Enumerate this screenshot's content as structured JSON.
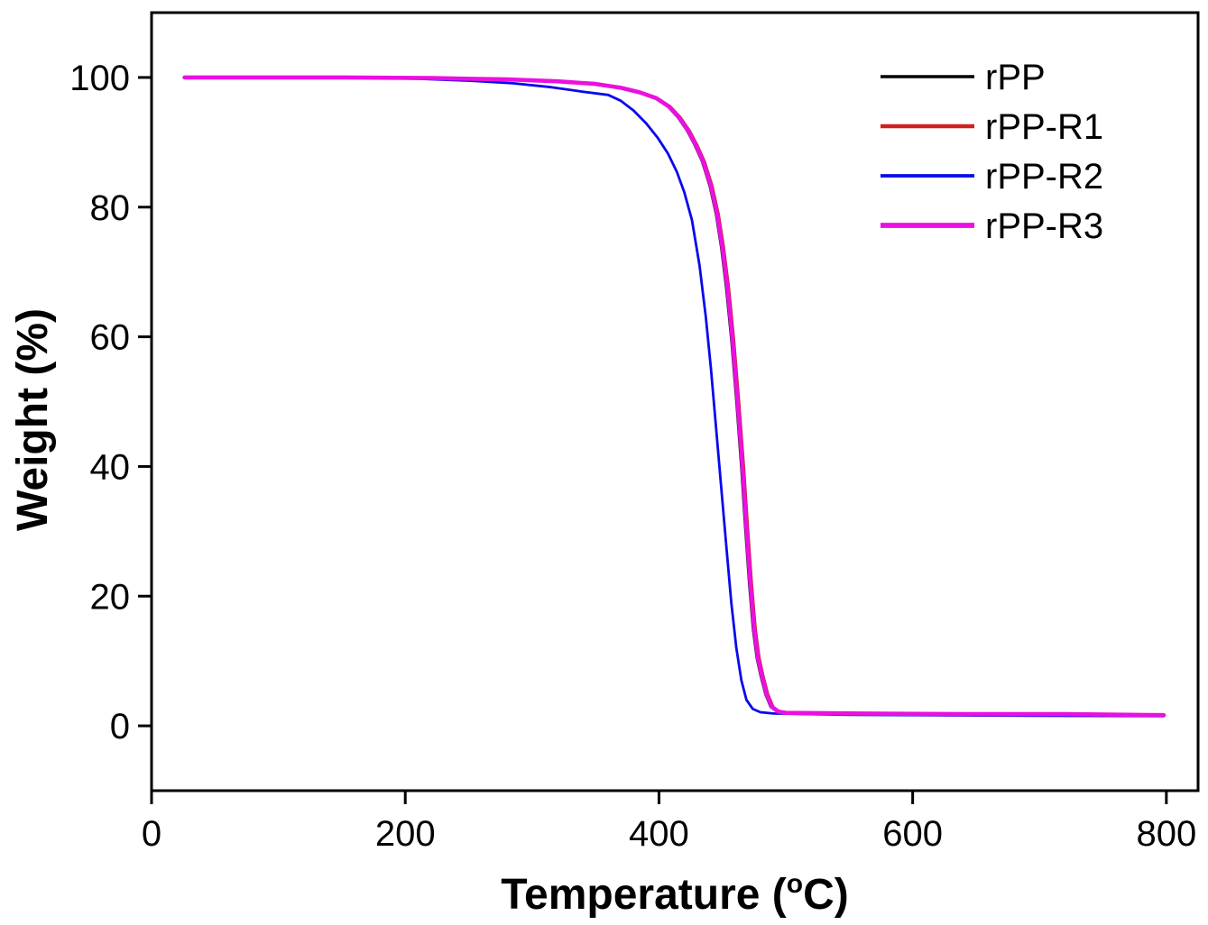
{
  "figure": {
    "background": "#ffffff",
    "frame_color": "#000000"
  },
  "chart_data": {
    "type": "line",
    "title": "",
    "xlabel": "Temperature (°C)",
    "xlabel_parts": {
      "prefix": "Temperature (",
      "sup": "o",
      "suffix": "C)"
    },
    "ylabel": "Weight (%)",
    "xlim": [
      0,
      825
    ],
    "ylim": [
      -10,
      110
    ],
    "x_ticks": [
      0,
      200,
      400,
      600,
      800
    ],
    "y_ticks": [
      0,
      20,
      40,
      60,
      80,
      100
    ],
    "grid": false,
    "legend_position": "top-right",
    "series": [
      {
        "name": "rPP",
        "color": "#000000",
        "width": 2.6,
        "legend_width": 3.6,
        "points": [
          [
            26,
            100
          ],
          [
            150,
            100
          ],
          [
            220,
            99.9
          ],
          [
            280,
            99.7
          ],
          [
            320,
            99.4
          ],
          [
            350,
            99.0
          ],
          [
            370,
            98.4
          ],
          [
            385,
            97.7
          ],
          [
            398,
            96.8
          ],
          [
            407,
            95.5
          ],
          [
            415,
            93.8
          ],
          [
            422,
            91.8
          ],
          [
            428,
            89.6
          ],
          [
            434,
            87.0
          ],
          [
            440,
            83.2
          ],
          [
            445,
            78.8
          ],
          [
            449,
            73.8
          ],
          [
            453,
            67.5
          ],
          [
            457,
            59.5
          ],
          [
            461,
            50.0
          ],
          [
            465,
            39.5
          ],
          [
            468,
            30.5
          ],
          [
            471,
            22.0
          ],
          [
            474,
            15.0
          ],
          [
            477,
            10.5
          ],
          [
            480,
            7.8
          ],
          [
            484,
            4.8
          ],
          [
            488,
            2.9
          ],
          [
            493,
            2.2
          ],
          [
            499,
            2.0
          ],
          [
            560,
            1.9
          ],
          [
            640,
            1.85
          ],
          [
            720,
            1.8
          ],
          [
            798,
            1.75
          ]
        ]
      },
      {
        "name": "rPP-R1",
        "color": "#d02020",
        "width": 3.2,
        "legend_width": 4.4,
        "points": [
          [
            26,
            100
          ],
          [
            150,
            100
          ],
          [
            220,
            99.9
          ],
          [
            280,
            99.7
          ],
          [
            320,
            99.4
          ],
          [
            350,
            99.0
          ],
          [
            370,
            98.4
          ],
          [
            385,
            97.7
          ],
          [
            398,
            96.8
          ],
          [
            409,
            95.5
          ],
          [
            417,
            93.8
          ],
          [
            424,
            91.8
          ],
          [
            430,
            89.6
          ],
          [
            436,
            87.0
          ],
          [
            442,
            83.2
          ],
          [
            447,
            78.8
          ],
          [
            451,
            73.8
          ],
          [
            455,
            67.5
          ],
          [
            459,
            59.5
          ],
          [
            463,
            50.0
          ],
          [
            467,
            39.5
          ],
          [
            470,
            30.5
          ],
          [
            473,
            22.0
          ],
          [
            476,
            15.0
          ],
          [
            479,
            10.5
          ],
          [
            482,
            7.8
          ],
          [
            486,
            4.8
          ],
          [
            490,
            2.9
          ],
          [
            495,
            2.2
          ],
          [
            501,
            2.0
          ],
          [
            560,
            1.9
          ],
          [
            640,
            1.8
          ],
          [
            720,
            1.75
          ],
          [
            798,
            1.7
          ]
        ]
      },
      {
        "name": "rPP-R2",
        "color": "#0808ee",
        "width": 2.8,
        "legend_width": 3.8,
        "points": [
          [
            26,
            100
          ],
          [
            150,
            100
          ],
          [
            210,
            99.8
          ],
          [
            250,
            99.5
          ],
          [
            285,
            99.1
          ],
          [
            315,
            98.5
          ],
          [
            340,
            97.8
          ],
          [
            360,
            97.3
          ],
          [
            370,
            96.4
          ],
          [
            380,
            94.9
          ],
          [
            390,
            92.9
          ],
          [
            399,
            90.7
          ],
          [
            407,
            88.3
          ],
          [
            414,
            85.5
          ],
          [
            420,
            82.3
          ],
          [
            426,
            78.0
          ],
          [
            432,
            71.0
          ],
          [
            437,
            63.0
          ],
          [
            441,
            55.0
          ],
          [
            445,
            46.0
          ],
          [
            449,
            37.0
          ],
          [
            453,
            28.0
          ],
          [
            457,
            19.0
          ],
          [
            461,
            12.0
          ],
          [
            465,
            7.0
          ],
          [
            469,
            4.0
          ],
          [
            474,
            2.6
          ],
          [
            480,
            2.1
          ],
          [
            490,
            1.9
          ],
          [
            550,
            1.7
          ],
          [
            650,
            1.6
          ],
          [
            798,
            1.5
          ]
        ]
      },
      {
        "name": "rPP-R3",
        "color": "#ea10e0",
        "width": 4.6,
        "legend_width": 5.8,
        "points": [
          [
            26,
            100
          ],
          [
            150,
            100
          ],
          [
            220,
            99.9
          ],
          [
            280,
            99.7
          ],
          [
            320,
            99.4
          ],
          [
            350,
            99.0
          ],
          [
            370,
            98.4
          ],
          [
            385,
            97.7
          ],
          [
            398,
            96.8
          ],
          [
            408,
            95.5
          ],
          [
            416,
            93.8
          ],
          [
            423,
            91.8
          ],
          [
            429,
            89.6
          ],
          [
            435,
            87.0
          ],
          [
            441,
            83.2
          ],
          [
            446,
            78.8
          ],
          [
            450,
            73.8
          ],
          [
            454,
            67.5
          ],
          [
            458,
            59.5
          ],
          [
            462,
            50.0
          ],
          [
            466,
            39.5
          ],
          [
            469,
            30.5
          ],
          [
            472,
            22.0
          ],
          [
            475,
            15.0
          ],
          [
            478,
            10.5
          ],
          [
            481,
            7.8
          ],
          [
            485,
            4.8
          ],
          [
            489,
            2.9
          ],
          [
            494,
            2.2
          ],
          [
            500,
            2.0
          ],
          [
            560,
            1.9
          ],
          [
            640,
            1.8
          ],
          [
            720,
            1.8
          ],
          [
            798,
            1.65
          ]
        ]
      }
    ]
  }
}
